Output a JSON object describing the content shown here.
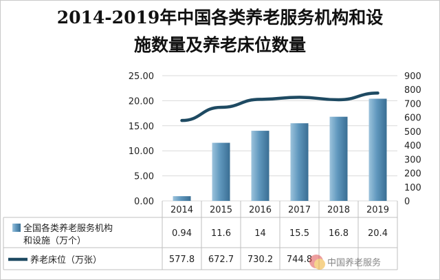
{
  "chart_data": {
    "type": "bar",
    "title_line1": "2014-2019年中国各类养老服务机构和设",
    "title_line2": "施数量及养老床位数量",
    "categories": [
      "2014",
      "2015",
      "2016",
      "2017",
      "2018",
      "2019"
    ],
    "series": [
      {
        "name_line1": "全国各类养老服务机构",
        "name_line2": "和设施（万个）",
        "type": "bar",
        "axis": "left",
        "values": [
          0.94,
          11.6,
          14,
          15.5,
          16.8,
          20.4
        ],
        "labels": [
          "0.94",
          "11.6",
          "14",
          "15.5",
          "16.8",
          "20.4"
        ]
      },
      {
        "name": "养老床位（万张）",
        "type": "line",
        "axis": "right",
        "values": [
          577.8,
          672.7,
          730.2,
          744.8,
          727.1,
          775.0
        ],
        "labels": [
          "577.8",
          "672.7",
          "730.2",
          "744.8",
          "",
          ""
        ]
      }
    ],
    "y_left": {
      "min": 0,
      "max": 25,
      "step": 5,
      "ticks": [
        "0.00",
        "5.00",
        "10.00",
        "15.00",
        "20.00",
        "25.00"
      ]
    },
    "y_right": {
      "min": 0,
      "max": 900,
      "step": 100,
      "ticks": [
        "0",
        "100",
        "200",
        "300",
        "400",
        "500",
        "600",
        "700",
        "800",
        "900"
      ]
    },
    "gridlines": true,
    "legend": "bottom-table",
    "colors": {
      "bar_light": "#9cc3dc",
      "bar_mid": "#5f97bd",
      "bar_dark": "#3a6e93",
      "line": "#1e4a62",
      "grid": "#d9d9d9",
      "table_border": "#bfbfbf"
    }
  },
  "watermark": "中国养老服务"
}
